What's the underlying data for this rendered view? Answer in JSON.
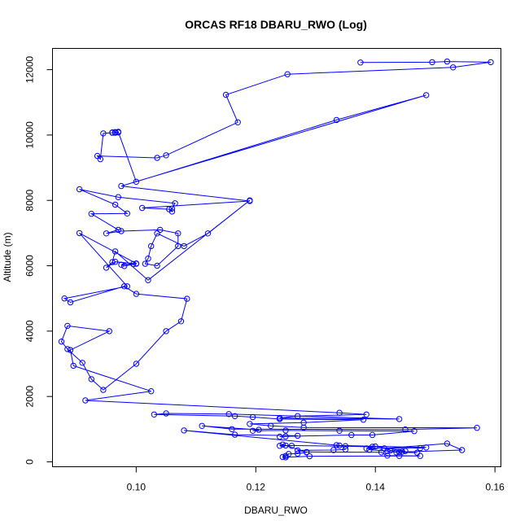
{
  "chart_data": {
    "type": "line",
    "title": "ORCAS RF18 DBARU_RWO (Log)",
    "xlabel": "DBARU_RWO",
    "ylabel": "Altitude (m)",
    "xlim": [
      0.086,
      0.161
    ],
    "ylim": [
      -150,
      12650
    ],
    "xticks": [
      0.1,
      0.12,
      0.14,
      0.16
    ],
    "xtick_labels": [
      "0.10",
      "0.12",
      "0.14",
      "0.16"
    ],
    "yticks": [
      0,
      2000,
      4000,
      6000,
      8000,
      10000,
      12000
    ],
    "ytick_labels": [
      "0",
      "2000",
      "4000",
      "6000",
      "8000",
      "10000",
      "12000"
    ],
    "grid": false,
    "legend": "none",
    "colors": {
      "series": "#0000ff",
      "axes": "#000000"
    },
    "series": [
      {
        "name": "",
        "points": [
          [
            0.1375,
            12220
          ],
          [
            0.1495,
            12230
          ],
          [
            0.152,
            12250
          ],
          [
            0.1593,
            12230
          ],
          [
            0.153,
            12070
          ],
          [
            0.1253,
            11860
          ],
          [
            0.115,
            11230
          ],
          [
            0.117,
            10390
          ],
          [
            0.105,
            9380
          ],
          [
            0.1035,
            9300
          ],
          [
            0.0935,
            9360
          ],
          [
            0.094,
            9260
          ],
          [
            0.0945,
            10050
          ],
          [
            0.096,
            10070
          ],
          [
            0.0965,
            10090
          ],
          [
            0.097,
            10080
          ],
          [
            0.096,
            10080
          ],
          [
            0.0965,
            10070
          ],
          [
            0.097,
            10100
          ],
          [
            0.1,
            8570
          ],
          [
            0.1335,
            10460
          ],
          [
            0.1485,
            11220
          ],
          [
            0.0975,
            8440
          ],
          [
            0.119,
            7980
          ],
          [
            0.101,
            7770
          ],
          [
            0.1055,
            7730
          ],
          [
            0.106,
            7660
          ],
          [
            0.106,
            7750
          ],
          [
            0.1065,
            7910
          ],
          [
            0.097,
            8100
          ],
          [
            0.0905,
            8340
          ],
          [
            0.0965,
            7870
          ],
          [
            0.0985,
            7600
          ],
          [
            0.0925,
            7590
          ],
          [
            0.097,
            7100
          ],
          [
            0.095,
            6990
          ],
          [
            0.0975,
            7060
          ],
          [
            0.104,
            7100
          ],
          [
            0.107,
            6990
          ],
          [
            0.107,
            6600
          ],
          [
            0.1035,
            6000
          ],
          [
            0.1015,
            6060
          ],
          [
            0.102,
            6220
          ],
          [
            0.1025,
            6600
          ],
          [
            0.1035,
            6990
          ],
          [
            0.108,
            6600
          ],
          [
            0.112,
            6990
          ],
          [
            0.119,
            8000
          ],
          [
            0.102,
            5560
          ],
          [
            0.0965,
            6440
          ],
          [
            0.096,
            6110
          ],
          [
            0.095,
            5940
          ],
          [
            0.0965,
            6120
          ],
          [
            0.1,
            6060
          ],
          [
            0.098,
            5990
          ],
          [
            0.0975,
            6030
          ],
          [
            0.0995,
            6050
          ],
          [
            0.1,
            6070
          ],
          [
            0.0905,
            7000
          ],
          [
            0.0985,
            5370
          ],
          [
            0.088,
            5000
          ],
          [
            0.089,
            4880
          ],
          [
            0.098,
            5370
          ],
          [
            0.1,
            5140
          ],
          [
            0.1085,
            4990
          ],
          [
            0.1075,
            4300
          ],
          [
            0.105,
            4000
          ],
          [
            0.1,
            3000
          ],
          [
            0.0945,
            2200
          ],
          [
            0.0925,
            2530
          ],
          [
            0.091,
            3030
          ],
          [
            0.0885,
            3450
          ],
          [
            0.0875,
            3680
          ],
          [
            0.0885,
            4160
          ],
          [
            0.0955,
            4000
          ],
          [
            0.089,
            3420
          ],
          [
            0.0895,
            2940
          ],
          [
            0.1025,
            2160
          ],
          [
            0.0915,
            1880
          ],
          [
            0.134,
            1500
          ],
          [
            0.1385,
            1450
          ],
          [
            0.127,
            1400
          ],
          [
            0.124,
            1340
          ],
          [
            0.144,
            1310
          ],
          [
            0.1155,
            1460
          ],
          [
            0.105,
            1480
          ],
          [
            0.103,
            1450
          ],
          [
            0.1165,
            1400
          ],
          [
            0.1195,
            1370
          ],
          [
            0.124,
            1310
          ],
          [
            0.138,
            1290
          ],
          [
            0.128,
            1200
          ],
          [
            0.119,
            1160
          ],
          [
            0.1225,
            1100
          ],
          [
            0.128,
            1050
          ],
          [
            0.157,
            1040
          ],
          [
            0.145,
            990
          ],
          [
            0.116,
            1000
          ],
          [
            0.111,
            1100
          ],
          [
            0.1205,
            980
          ],
          [
            0.1195,
            950
          ],
          [
            0.125,
            960
          ],
          [
            0.134,
            950
          ],
          [
            0.1465,
            940
          ],
          [
            0.1395,
            820
          ],
          [
            0.136,
            820
          ],
          [
            0.125,
            780
          ],
          [
            0.124,
            770
          ],
          [
            0.127,
            800
          ],
          [
            0.1165,
            830
          ],
          [
            0.108,
            960
          ],
          [
            0.1335,
            510
          ],
          [
            0.134,
            500
          ],
          [
            0.1485,
            440
          ],
          [
            0.1475,
            420
          ],
          [
            0.1385,
            410
          ],
          [
            0.14,
            470
          ],
          [
            0.145,
            330
          ],
          [
            0.1445,
            310
          ],
          [
            0.1425,
            350
          ],
          [
            0.1415,
            410
          ],
          [
            0.152,
            560
          ],
          [
            0.1545,
            360
          ],
          [
            0.144,
            300
          ],
          [
            0.147,
            280
          ],
          [
            0.1435,
            290
          ],
          [
            0.142,
            330
          ],
          [
            0.139,
            370
          ],
          [
            0.1395,
            460
          ],
          [
            0.135,
            480
          ],
          [
            0.125,
            500
          ],
          [
            0.126,
            490
          ],
          [
            0.124,
            490
          ],
          [
            0.1245,
            530
          ],
          [
            0.1285,
            290
          ],
          [
            0.127,
            250
          ],
          [
            0.1255,
            240
          ],
          [
            0.125,
            180
          ],
          [
            0.1245,
            150
          ],
          [
            0.125,
            140
          ],
          [
            0.129,
            170
          ],
          [
            0.144,
            180
          ],
          [
            0.1475,
            180
          ],
          [
            0.142,
            190
          ],
          [
            0.141,
            290
          ],
          [
            0.1285,
            300
          ],
          [
            0.127,
            350
          ],
          [
            0.133,
            360
          ],
          [
            0.135,
            380
          ]
        ]
      }
    ]
  }
}
